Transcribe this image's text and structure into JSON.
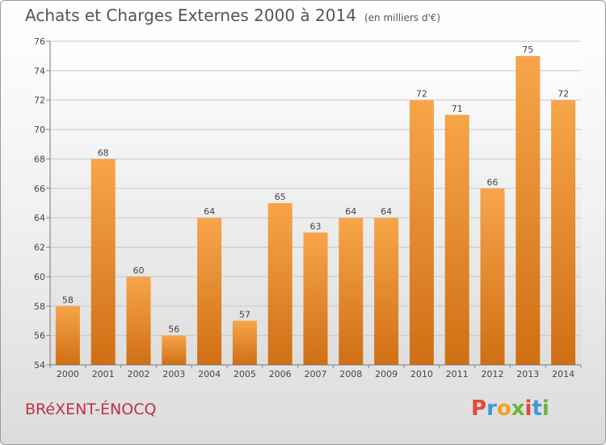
{
  "header": {
    "title": "Achats et Charges Externes 2000 à 2014",
    "unit": "(en milliers d'€)"
  },
  "footer": {
    "commune": "BRéXENT-ÉNOCQ",
    "brand": {
      "letters": [
        "P",
        "r",
        "o",
        "x",
        "i",
        "t",
        "i"
      ],
      "colors": [
        "#e8473a",
        "#3a9ad9",
        "#f0a020",
        "#6bb33d",
        "#e8473a",
        "#3a9ad9",
        "#6bb33d"
      ]
    }
  },
  "chart_data": {
    "type": "bar",
    "title": "Achats et Charges Externes 2000 à 2014",
    "subtitle": "(en milliers d'€)",
    "categories": [
      "2000",
      "2001",
      "2002",
      "2003",
      "2004",
      "2005",
      "2006",
      "2007",
      "2008",
      "2009",
      "2010",
      "2011",
      "2012",
      "2013",
      "2014"
    ],
    "values": [
      58,
      68,
      60,
      56,
      64,
      57,
      65,
      63,
      64,
      64,
      72,
      71,
      66,
      75,
      72
    ],
    "ylim": [
      54,
      76
    ],
    "yticks": [
      54,
      56,
      58,
      60,
      62,
      64,
      66,
      68,
      70,
      72,
      74,
      76
    ],
    "grid": true,
    "bar_color_top": "#f7a54a",
    "bar_color_bottom": "#d06f14",
    "xlabel": "",
    "ylabel": ""
  }
}
